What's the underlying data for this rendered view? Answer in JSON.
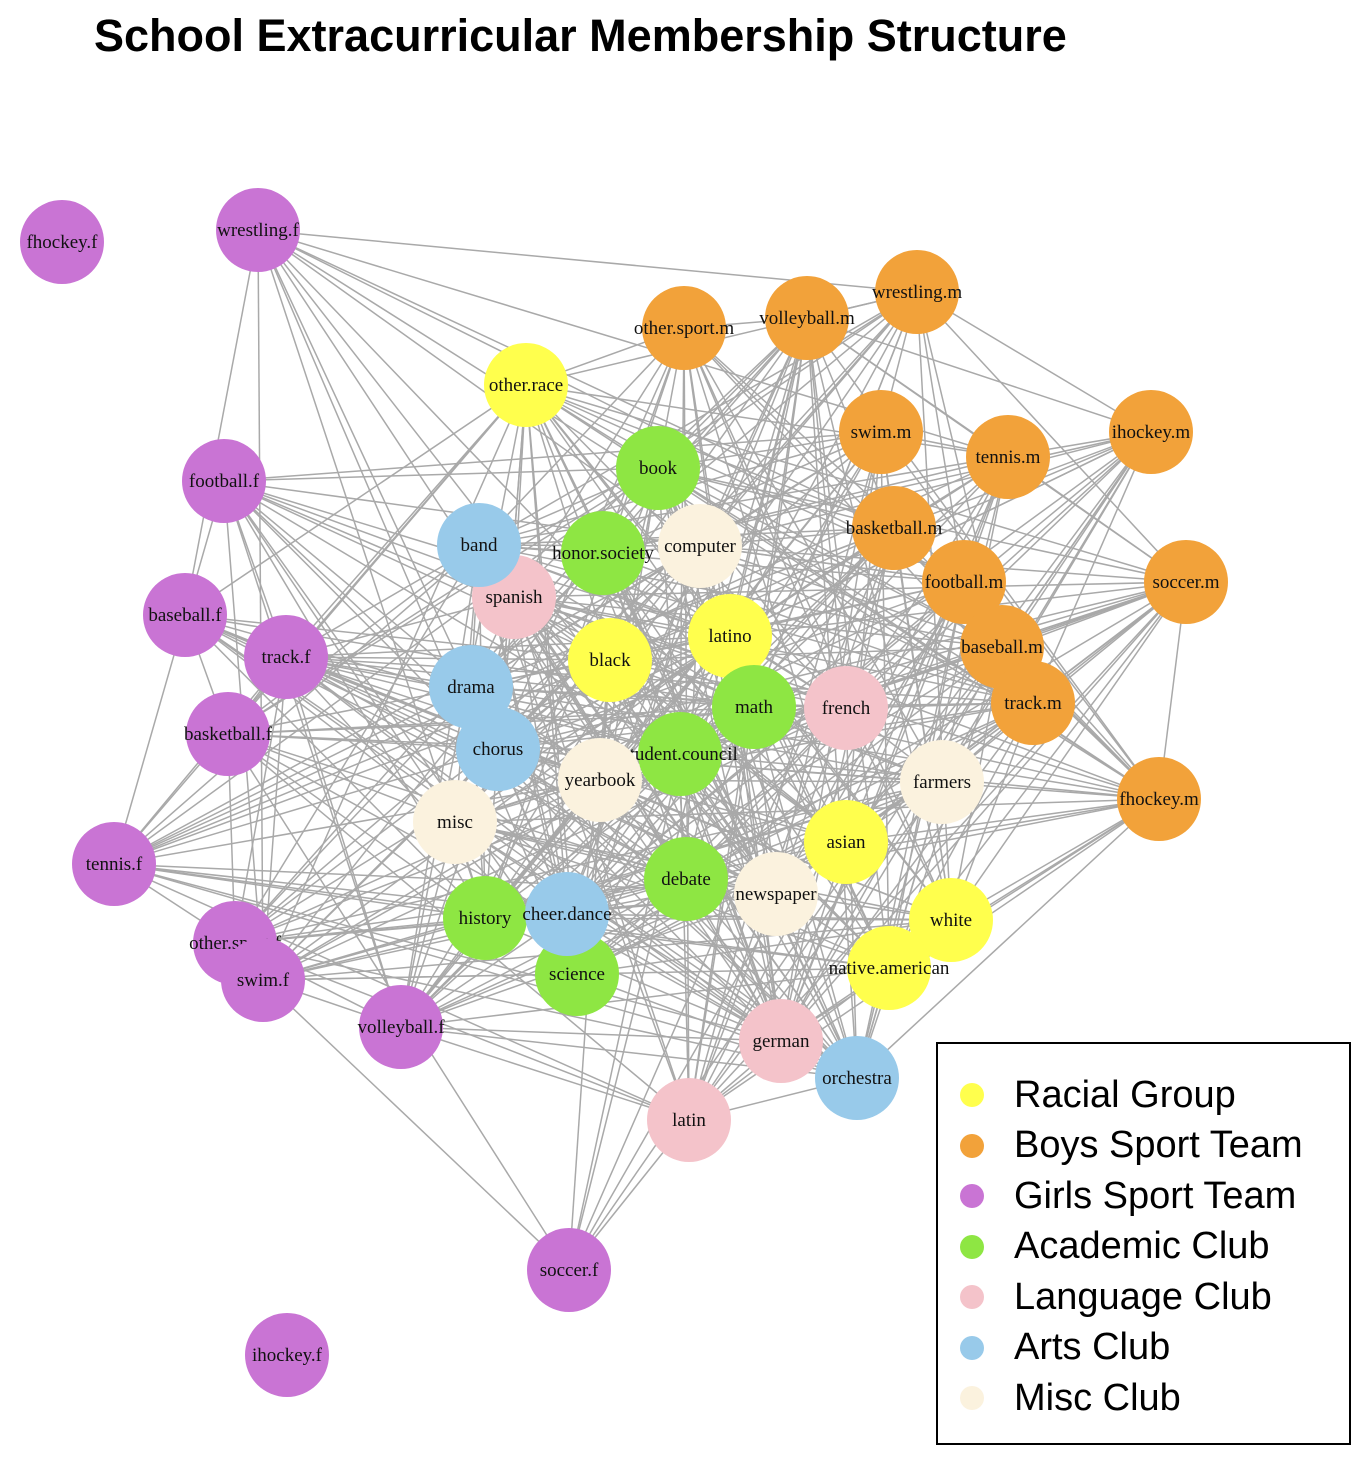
{
  "title": "School Extracurricular Membership Structure",
  "groups": [
    {
      "id": "racial",
      "label": "Racial Group",
      "color": "#FFFF4D"
    },
    {
      "id": "boys",
      "label": "Boys Sport Team",
      "color": "#F2A23A"
    },
    {
      "id": "girls",
      "label": "Girls Sport Team",
      "color": "#C974D4"
    },
    {
      "id": "academic",
      "label": "Academic Club",
      "color": "#8EE643"
    },
    {
      "id": "language",
      "label": "Language Club",
      "color": "#F4C3CA"
    },
    {
      "id": "arts",
      "label": "Arts Club",
      "color": "#98CAEA"
    },
    {
      "id": "misc",
      "label": "Misc Club",
      "color": "#FBF2DE"
    }
  ],
  "edge_color": "#A9A9A9",
  "nodes": [
    {
      "id": "fhockey.f",
      "group": "girls"
    },
    {
      "id": "wrestling.f",
      "group": "girls"
    },
    {
      "id": "football.f",
      "group": "girls"
    },
    {
      "id": "baseball.f",
      "group": "girls"
    },
    {
      "id": "track.f",
      "group": "girls"
    },
    {
      "id": "basketball.f",
      "group": "girls"
    },
    {
      "id": "tennis.f",
      "group": "girls"
    },
    {
      "id": "other.sport.f",
      "group": "girls"
    },
    {
      "id": "swim.f",
      "group": "girls"
    },
    {
      "id": "volleyball.f",
      "group": "girls"
    },
    {
      "id": "soccer.f",
      "group": "girls"
    },
    {
      "id": "ihockey.f",
      "group": "girls"
    },
    {
      "id": "other.sport.m",
      "group": "boys"
    },
    {
      "id": "volleyball.m",
      "group": "boys"
    },
    {
      "id": "wrestling.m",
      "group": "boys"
    },
    {
      "id": "swim.m",
      "group": "boys"
    },
    {
      "id": "tennis.m",
      "group": "boys"
    },
    {
      "id": "ihockey.m",
      "group": "boys"
    },
    {
      "id": "basketball.m",
      "group": "boys"
    },
    {
      "id": "football.m",
      "group": "boys"
    },
    {
      "id": "soccer.m",
      "group": "boys"
    },
    {
      "id": "baseball.m",
      "group": "boys"
    },
    {
      "id": "track.m",
      "group": "boys"
    },
    {
      "id": "fhockey.m",
      "group": "boys"
    },
    {
      "id": "other.race",
      "group": "racial"
    },
    {
      "id": "black",
      "group": "racial"
    },
    {
      "id": "latino",
      "group": "racial"
    },
    {
      "id": "asian",
      "group": "racial"
    },
    {
      "id": "white",
      "group": "racial"
    },
    {
      "id": "native.american",
      "group": "racial"
    },
    {
      "id": "book",
      "group": "academic"
    },
    {
      "id": "honor.society",
      "group": "academic"
    },
    {
      "id": "math",
      "group": "academic"
    },
    {
      "id": "student.council",
      "group": "academic"
    },
    {
      "id": "debate",
      "group": "academic"
    },
    {
      "id": "history",
      "group": "academic"
    },
    {
      "id": "science",
      "group": "academic"
    },
    {
      "id": "spanish",
      "group": "language"
    },
    {
      "id": "french",
      "group": "language"
    },
    {
      "id": "german",
      "group": "language"
    },
    {
      "id": "latin",
      "group": "language"
    },
    {
      "id": "band",
      "group": "arts"
    },
    {
      "id": "drama",
      "group": "arts"
    },
    {
      "id": "chorus",
      "group": "arts"
    },
    {
      "id": "cheer.dance",
      "group": "arts"
    },
    {
      "id": "orchestra",
      "group": "arts"
    },
    {
      "id": "computer",
      "group": "misc"
    },
    {
      "id": "yearbook",
      "group": "misc"
    },
    {
      "id": "misc",
      "group": "misc"
    },
    {
      "id": "farmers",
      "group": "misc"
    },
    {
      "id": "newspaper",
      "group": "misc"
    }
  ]
}
